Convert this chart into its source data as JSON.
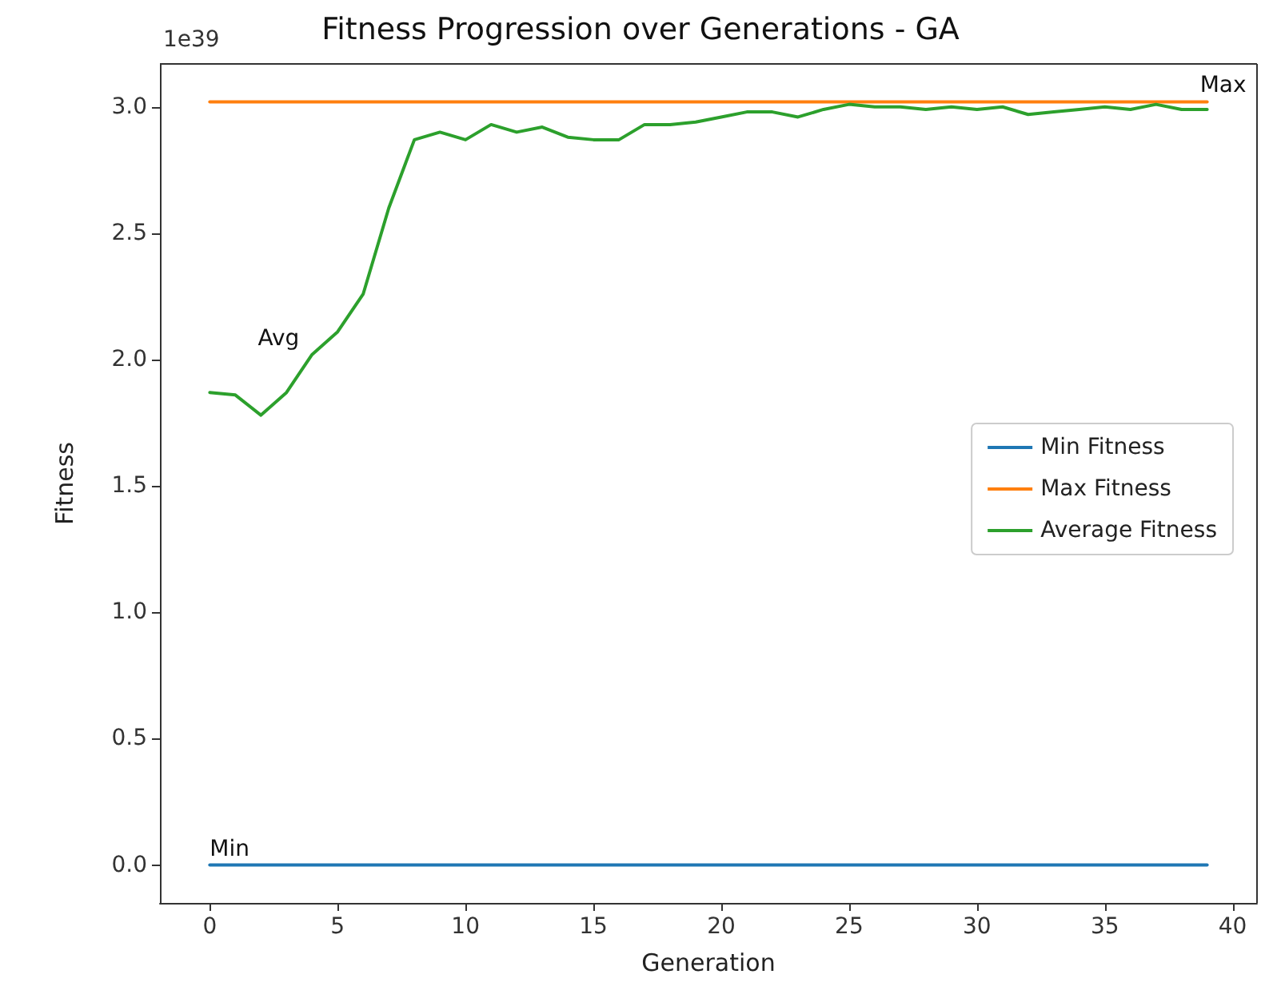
{
  "chart_data": {
    "type": "line",
    "title": "Fitness Progression over Generations - GA",
    "xlabel": "Generation",
    "ylabel": "Fitness",
    "x": [
      0,
      1,
      2,
      3,
      4,
      5,
      6,
      7,
      8,
      9,
      10,
      11,
      12,
      13,
      14,
      15,
      16,
      17,
      18,
      19,
      20,
      21,
      22,
      23,
      24,
      25,
      26,
      27,
      28,
      29,
      30,
      31,
      32,
      33,
      34,
      35,
      36,
      37,
      38,
      39
    ],
    "series": [
      {
        "name": "Min Fitness",
        "color": "#1f77b4",
        "values": [
          0,
          0,
          0,
          0,
          0,
          0,
          0,
          0,
          0,
          0,
          0,
          0,
          0,
          0,
          0,
          0,
          0,
          0,
          0,
          0,
          0,
          0,
          0,
          0,
          0,
          0,
          0,
          0,
          0,
          0,
          0,
          0,
          0,
          0,
          0,
          0,
          0,
          0,
          0,
          0
        ]
      },
      {
        "name": "Max Fitness",
        "color": "#ff7f0e",
        "values": [
          3.02,
          3.02,
          3.02,
          3.02,
          3.02,
          3.02,
          3.02,
          3.02,
          3.02,
          3.02,
          3.02,
          3.02,
          3.02,
          3.02,
          3.02,
          3.02,
          3.02,
          3.02,
          3.02,
          3.02,
          3.02,
          3.02,
          3.02,
          3.02,
          3.02,
          3.02,
          3.02,
          3.02,
          3.02,
          3.02,
          3.02,
          3.02,
          3.02,
          3.02,
          3.02,
          3.02,
          3.02,
          3.02,
          3.02,
          3.02
        ]
      },
      {
        "name": "Average Fitness",
        "color": "#2ca02c",
        "values": [
          1.87,
          1.86,
          1.78,
          1.87,
          2.02,
          2.11,
          2.26,
          2.6,
          2.87,
          2.9,
          2.87,
          2.93,
          2.9,
          2.92,
          2.88,
          2.87,
          2.87,
          2.93,
          2.93,
          2.94,
          2.96,
          2.98,
          2.98,
          2.96,
          2.99,
          3.01,
          3.0,
          3.0,
          2.99,
          3.0,
          2.99,
          3.0,
          2.97,
          2.98,
          2.99,
          3.0,
          2.99,
          3.01,
          2.99,
          2.99
        ]
      }
    ],
    "annotations": [
      "1e39",
      {
        "text": "Avg",
        "x": 4,
        "y": 2.02
      },
      {
        "text": "Min",
        "x": 0,
        "y": 0
      },
      {
        "text": "Max",
        "x": 39,
        "y": 3.02
      }
    ],
    "xlim": [
      -1.95,
      40.95
    ],
    "xticks": [
      0,
      5,
      10,
      15,
      20,
      25,
      30,
      35,
      40
    ],
    "ylim": [
      -0.15,
      3.17
    ],
    "yticks": [
      {
        "value": 0,
        "label": "0.0"
      },
      {
        "value": 0.5,
        "label": "0.5"
      },
      {
        "value": 1,
        "label": "1.0"
      },
      {
        "value": 1.5,
        "label": "1.5"
      },
      {
        "value": 2,
        "label": "2.0"
      },
      {
        "value": 2.5,
        "label": "2.5"
      },
      {
        "value": 3,
        "label": "3.0"
      }
    ],
    "legend": "right",
    "grid": false,
    "marker": "none",
    "line_style": "solid"
  }
}
